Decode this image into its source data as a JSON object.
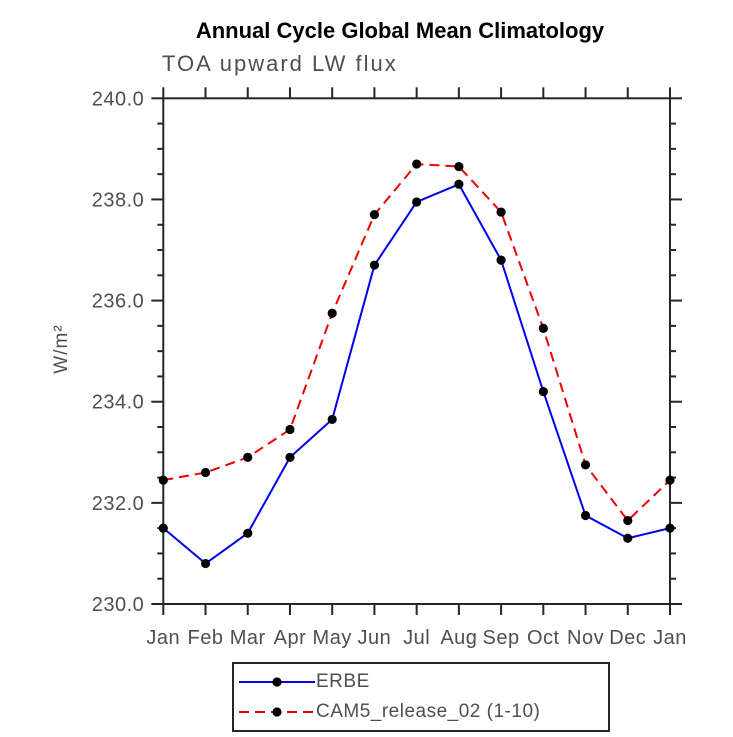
{
  "header": {
    "title": "Annual Cycle Global Mean Climatology",
    "subtitle": "TOA upward LW flux"
  },
  "chart_data": {
    "type": "line",
    "title": "Annual Cycle Global Mean Climatology",
    "subtitle": "TOA upward LW flux",
    "xlabel": "",
    "ylabel": "W/m²",
    "categories": [
      "Jan",
      "Feb",
      "Mar",
      "Apr",
      "May",
      "Jun",
      "Jul",
      "Aug",
      "Sep",
      "Oct",
      "Nov",
      "Dec",
      "Jan"
    ],
    "ylim": [
      230.0,
      240.0
    ],
    "ytick_interval": 2.0,
    "yminor_interval": 0.5,
    "ytick_labels": [
      "230.0",
      "232.0",
      "234.0",
      "236.0",
      "238.0",
      "240.0"
    ],
    "grid": false,
    "legend_position": "below-left",
    "frame_color": "#262626",
    "label_color": "#4f4f4f",
    "marker": "filled-circle",
    "marker_color": "#000000",
    "series": [
      {
        "name": "ERBE",
        "color": "#0000ee",
        "style": "solid",
        "values": [
          231.5,
          230.8,
          231.4,
          232.9,
          233.65,
          236.7,
          237.95,
          238.3,
          236.8,
          234.2,
          231.75,
          231.3,
          231.5
        ]
      },
      {
        "name": "CAM5_release_02 (1-10)",
        "color": "#ee0000",
        "style": "dashed",
        "values": [
          232.45,
          232.6,
          232.9,
          233.45,
          235.75,
          237.7,
          238.7,
          238.65,
          237.75,
          235.45,
          232.75,
          231.65,
          232.45
        ]
      }
    ]
  }
}
